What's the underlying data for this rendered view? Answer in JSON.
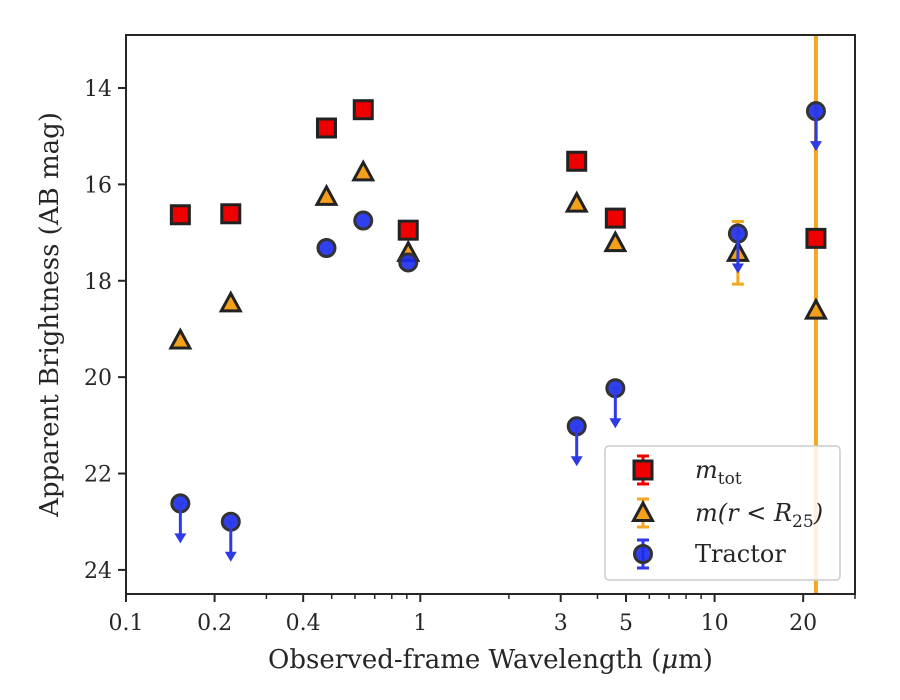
{
  "chart_data": {
    "type": "scatter",
    "xlabel_prefix": "Observed-frame Wavelength (",
    "xlabel_mu": "μ",
    "xlabel_suffix": "m)",
    "ylabel": "Apparent Brightness (AB mag)",
    "xscale": "log",
    "xlim": [
      0.1,
      30
    ],
    "ylim": [
      24.5,
      12.9
    ],
    "y_inverted": true,
    "grid": false,
    "x_ticks": [
      {
        "value": 0.1,
        "label": "0.1"
      },
      {
        "value": 0.2,
        "label": "0.2"
      },
      {
        "value": 0.4,
        "label": "0.4"
      },
      {
        "value": 1,
        "label": "1"
      },
      {
        "value": 3,
        "label": "3"
      },
      {
        "value": 5,
        "label": "5"
      },
      {
        "value": 10,
        "label": "10"
      },
      {
        "value": 20,
        "label": "20"
      }
    ],
    "x_minor_ticks": [
      0.3,
      0.5,
      0.6,
      0.7,
      0.8,
      0.9,
      2,
      4,
      6,
      7,
      8,
      9,
      30
    ],
    "y_ticks": [
      {
        "value": 14,
        "label": "14"
      },
      {
        "value": 16,
        "label": "16"
      },
      {
        "value": 18,
        "label": "18"
      },
      {
        "value": 20,
        "label": "20"
      },
      {
        "value": 22,
        "label": "22"
      },
      {
        "value": 24,
        "label": "24"
      }
    ],
    "vline": {
      "x": 22.1,
      "color": "#f5a623"
    },
    "series": [
      {
        "key": "mtot",
        "legend_base": "m",
        "legend_sub": "tot",
        "marker": "square",
        "color": "#ee0000",
        "edge": "#222222",
        "errcolor": "#ee0000",
        "points": [
          {
            "x": 0.153,
            "y": 16.63
          },
          {
            "x": 0.227,
            "y": 16.61
          },
          {
            "x": 0.48,
            "y": 14.83
          },
          {
            "x": 0.64,
            "y": 14.45
          },
          {
            "x": 0.91,
            "y": 16.95
          },
          {
            "x": 3.4,
            "y": 15.52
          },
          {
            "x": 4.6,
            "y": 16.7
          },
          {
            "x": 22.1,
            "y": 17.12
          }
        ]
      },
      {
        "key": "mr25",
        "legend_base": "m",
        "legend_mid": "(r < R",
        "legend_sub": "25",
        "legend_end": ")",
        "marker": "triangle",
        "color": "#f5a01a",
        "edge": "#222222",
        "errcolor": "#f5a623",
        "points": [
          {
            "x": 0.153,
            "y": 19.24
          },
          {
            "x": 0.227,
            "y": 18.47
          },
          {
            "x": 0.48,
            "y": 16.26
          },
          {
            "x": 0.64,
            "y": 15.75
          },
          {
            "x": 0.91,
            "y": 17.42
          },
          {
            "x": 3.4,
            "y": 16.4
          },
          {
            "x": 4.6,
            "y": 17.22
          },
          {
            "x": 12.0,
            "y": 17.42,
            "yerr": 0.65
          },
          {
            "x": 22.1,
            "y": 18.62
          }
        ]
      },
      {
        "key": "tractor",
        "legend_label": "Tractor",
        "marker": "circle",
        "color": "#1a2bee",
        "edge": "#333333",
        "errcolor": "#2d3ae6",
        "points": [
          {
            "x": 0.153,
            "y": 22.62,
            "upper_limit": true
          },
          {
            "x": 0.227,
            "y": 23.0,
            "upper_limit": true
          },
          {
            "x": 0.48,
            "y": 17.32
          },
          {
            "x": 0.64,
            "y": 16.75
          },
          {
            "x": 0.91,
            "y": 17.62
          },
          {
            "x": 3.4,
            "y": 21.02,
            "upper_limit": true
          },
          {
            "x": 4.6,
            "y": 20.23,
            "upper_limit": true
          },
          {
            "x": 12.0,
            "y": 17.02,
            "upper_limit": true
          },
          {
            "x": 22.1,
            "y": 14.48,
            "upper_limit": true
          }
        ]
      }
    ],
    "legend_position": "lower right"
  }
}
